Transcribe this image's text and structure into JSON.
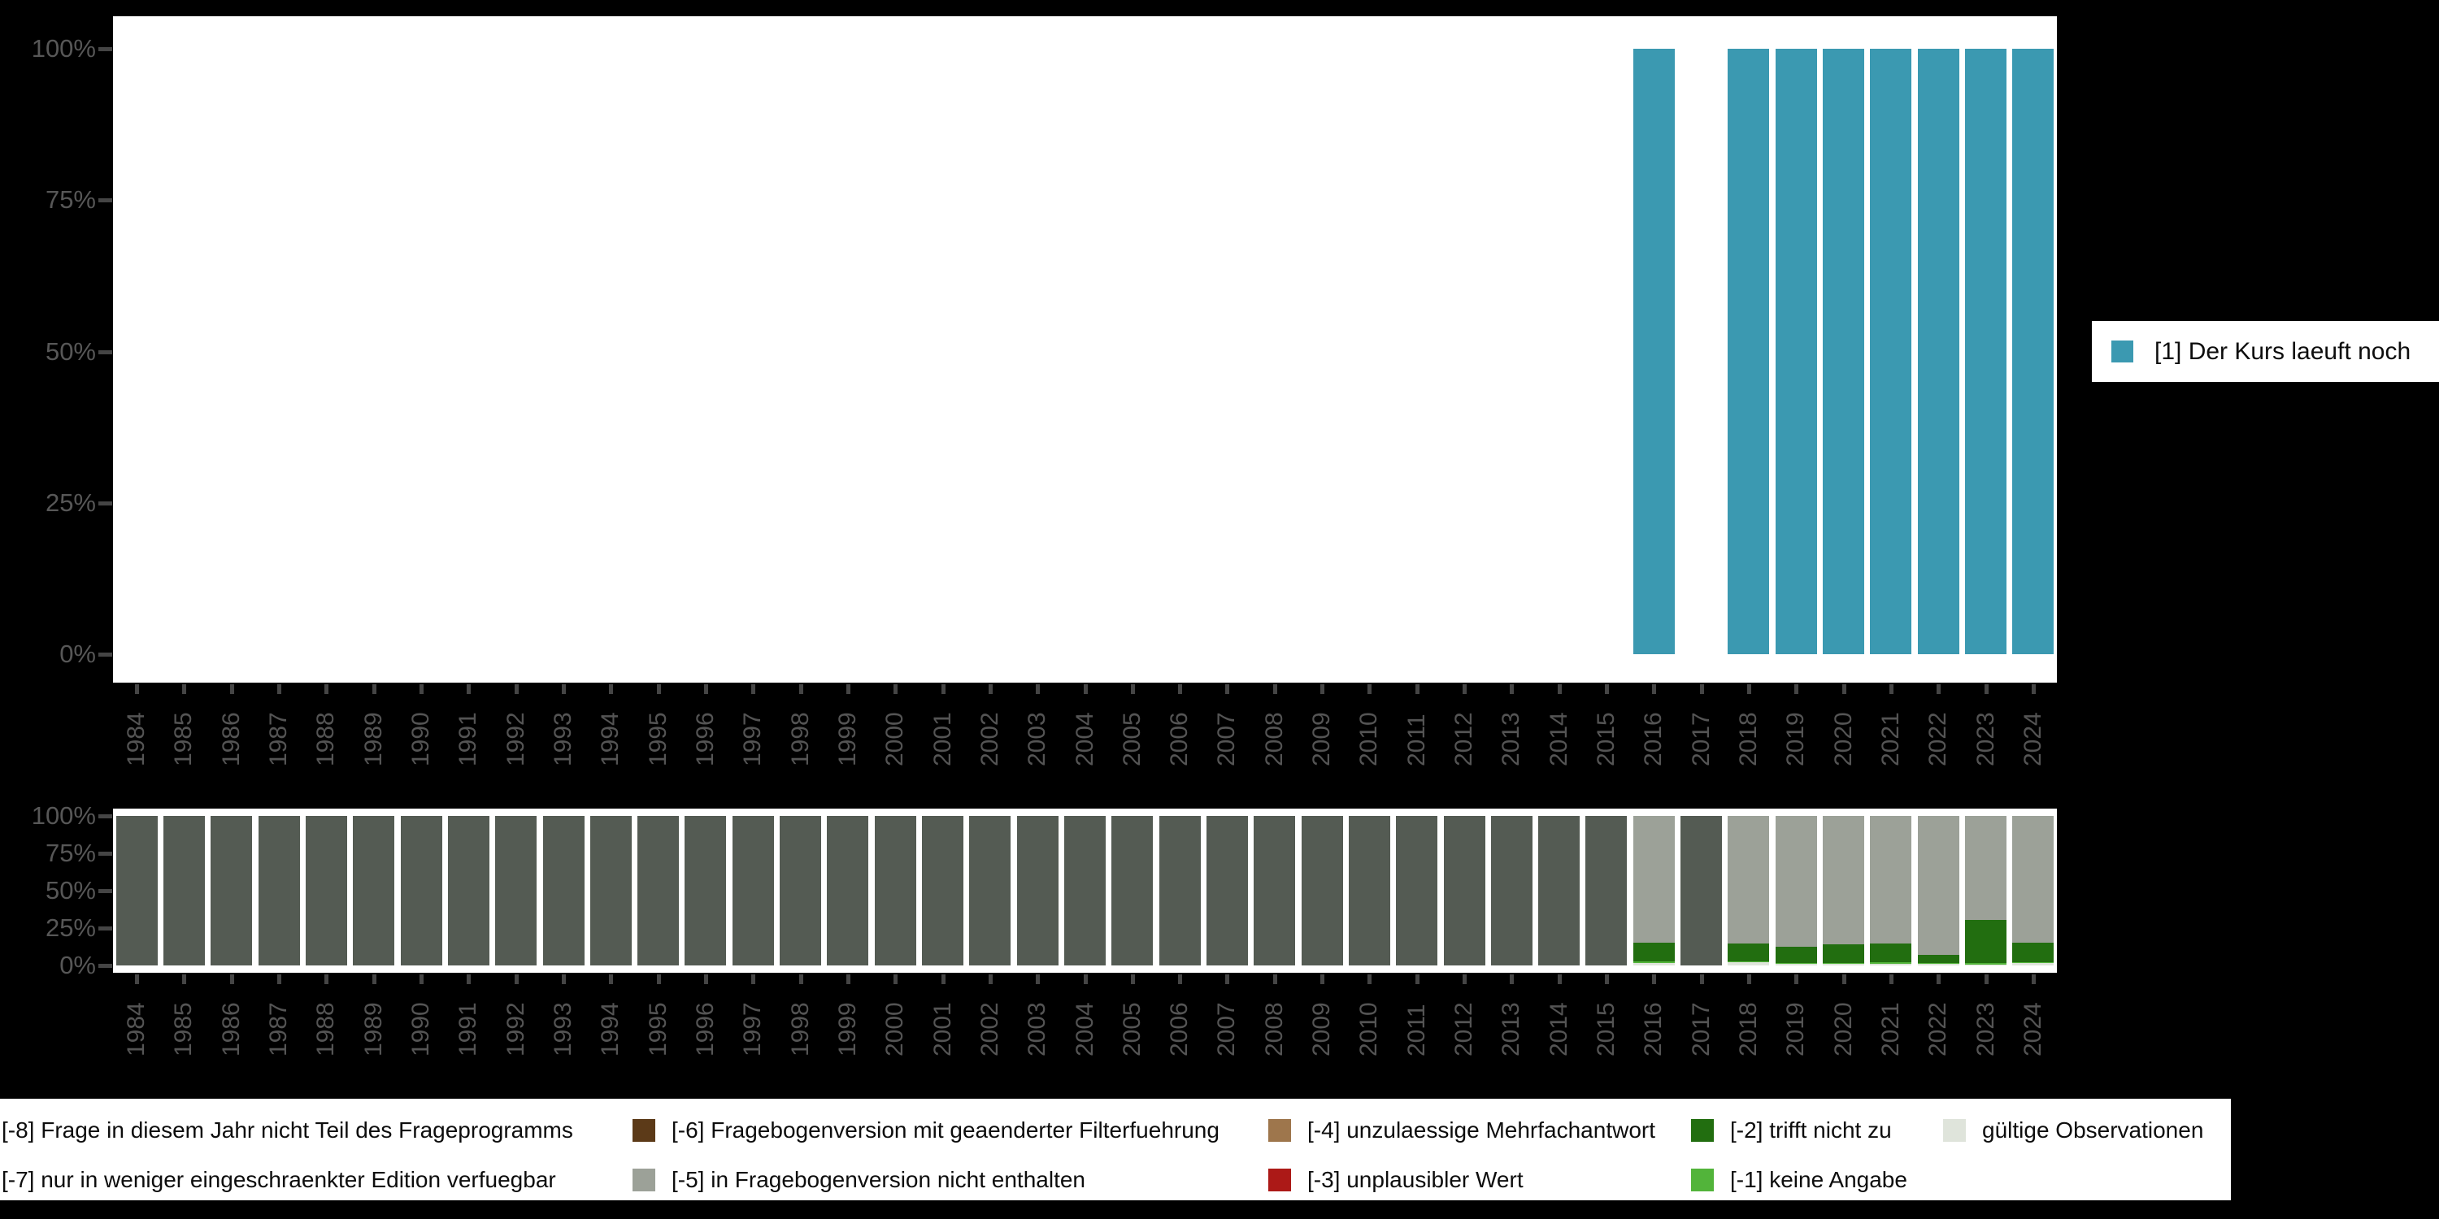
{
  "colors": {
    "background": "#000000",
    "plot_background": "#ffffff",
    "axis_text": "#545454",
    "tick_mark": "#454545",
    "legend_text": "#0d0d0d",
    "value_1_teal": "#3B99B1",
    "code_m8_darkolive": "#545B53",
    "code_m6_darkbrown": "#5C3A18",
    "code_m5_gray": "#9CA198",
    "code_m4_tan": "#9E764C",
    "code_m3_red": "#AC1917",
    "code_m2_darkgreen": "#226E10",
    "code_m1_lightgreen": "#52B43A",
    "valid_palegray": "#DFE4DB"
  },
  "legend_top": {
    "label": "[1] Der Kurs laeuft noch",
    "swatch_color": "#3B99B1"
  },
  "legend_bottom": {
    "rows": [
      [
        {
          "label": "[-8] Frage in diesem Jahr nicht Teil des Frageprogramms",
          "square_visible": false,
          "color": null
        },
        {
          "label": "[-6] Fragebogenversion mit geaenderter Filterfuehrung",
          "square_visible": true,
          "color": "#5C3A18"
        },
        {
          "label": "[-4] unzulaessige Mehrfachantwort",
          "square_visible": true,
          "color": "#9E764C"
        },
        {
          "label": "[-2] trifft nicht zu",
          "square_visible": true,
          "color": "#226E10"
        },
        {
          "label": "gültige Observationen",
          "square_visible": true,
          "color": "#DFE4DB"
        }
      ],
      [
        {
          "label": "[-7] nur in weniger eingeschraenkter Edition verfuegbar",
          "square_visible": false,
          "color": null
        },
        {
          "label": "[-5] in Fragebogenversion nicht enthalten",
          "square_visible": true,
          "color": "#9CA198"
        },
        {
          "label": "[-3] unplausibler Wert",
          "square_visible": true,
          "color": "#AC1917"
        },
        {
          "label": "[-1] keine Angabe",
          "square_visible": true,
          "color": "#52B43A"
        }
      ]
    ]
  },
  "chart_data": [
    {
      "type": "bar",
      "title": "",
      "categories": [
        "1984",
        "1985",
        "1986",
        "1987",
        "1988",
        "1989",
        "1990",
        "1991",
        "1992",
        "1993",
        "1994",
        "1995",
        "1996",
        "1997",
        "1998",
        "1999",
        "2000",
        "2001",
        "2002",
        "2003",
        "2004",
        "2005",
        "2006",
        "2007",
        "2008",
        "2009",
        "2010",
        "2011",
        "2012",
        "2013",
        "2014",
        "2015",
        "2016",
        "2017",
        "2018",
        "2019",
        "2020",
        "2021",
        "2022",
        "2023",
        "2024"
      ],
      "ylim": [
        0,
        100
      ],
      "ytick_values": [
        0,
        25,
        50,
        75,
        100
      ],
      "ytick_labels": [
        "0%",
        "25%",
        "50%",
        "75%",
        "100%"
      ],
      "grid": false,
      "legend_position": "right",
      "series": [
        {
          "name": "[1] Der Kurs laeuft noch",
          "color": "#3B99B1",
          "values": [
            null,
            null,
            null,
            null,
            null,
            null,
            null,
            null,
            null,
            null,
            null,
            null,
            null,
            null,
            null,
            null,
            null,
            null,
            null,
            null,
            null,
            null,
            null,
            null,
            null,
            null,
            null,
            null,
            null,
            null,
            null,
            null,
            100,
            null,
            100,
            100,
            100,
            100,
            100,
            100,
            100
          ]
        }
      ]
    },
    {
      "type": "stacked_bar",
      "title": "",
      "categories": [
        "1984",
        "1985",
        "1986",
        "1987",
        "1988",
        "1989",
        "1990",
        "1991",
        "1992",
        "1993",
        "1994",
        "1995",
        "1996",
        "1997",
        "1998",
        "1999",
        "2000",
        "2001",
        "2002",
        "2003",
        "2004",
        "2005",
        "2006",
        "2007",
        "2008",
        "2009",
        "2010",
        "2011",
        "2012",
        "2013",
        "2014",
        "2015",
        "2016",
        "2017",
        "2018",
        "2019",
        "2020",
        "2021",
        "2022",
        "2023",
        "2024"
      ],
      "ylim": [
        0,
        100
      ],
      "ytick_values": [
        0,
        25,
        50,
        75,
        100
      ],
      "ytick_labels": [
        "0%",
        "25%",
        "50%",
        "75%",
        "100%"
      ],
      "grid": false,
      "legend_position": "bottom",
      "series": [
        {
          "name": "gültige Observationen",
          "color": "#DFE4DB",
          "values": [
            0,
            0,
            0,
            0,
            0,
            0,
            0,
            0,
            0,
            0,
            0,
            0,
            0,
            0,
            0,
            0,
            0,
            0,
            0,
            0,
            0,
            0,
            0,
            0,
            0,
            0,
            0,
            0,
            0,
            0,
            0,
            0,
            1.5,
            0,
            2,
            1,
            1,
            1,
            1,
            0.5,
            1.5
          ]
        },
        {
          "name": "[-1] keine Angabe",
          "color": "#52B43A",
          "values": [
            0,
            0,
            0,
            0,
            0,
            0,
            0,
            0,
            0,
            0,
            0,
            0,
            0,
            0,
            0,
            0,
            0,
            0,
            0,
            0,
            0,
            0,
            0,
            0,
            0,
            0,
            0,
            0,
            0,
            0,
            0,
            0,
            1,
            0,
            0.5,
            0.5,
            0.5,
            1,
            0.5,
            1,
            0.5
          ]
        },
        {
          "name": "[-2] trifft nicht zu",
          "color": "#226E10",
          "values": [
            0,
            0,
            0,
            0,
            0,
            0,
            0,
            0,
            0,
            0,
            0,
            0,
            0,
            0,
            0,
            0,
            0,
            0,
            0,
            0,
            0,
            0,
            0,
            0,
            0,
            0,
            0,
            0,
            0,
            0,
            0,
            0,
            12.5,
            0,
            12,
            11,
            12.5,
            12.5,
            5.5,
            29,
            13
          ]
        },
        {
          "name": "[-5] in Fragebogenversion nicht enthalten",
          "color": "#9CA198",
          "values": [
            0,
            0,
            0,
            0,
            0,
            0,
            0,
            0,
            0,
            0,
            0,
            0,
            0,
            0,
            0,
            0,
            0,
            0,
            0,
            0,
            0,
            0,
            0,
            0,
            0,
            0,
            0,
            0,
            0,
            0,
            0,
            0,
            85,
            0,
            85.5,
            87.5,
            86,
            85.5,
            93,
            69.5,
            85
          ]
        },
        {
          "name": "[-8] Frage in diesem Jahr nicht Teil des Frageprogramms",
          "color": "#545B53",
          "values": [
            100,
            100,
            100,
            100,
            100,
            100,
            100,
            100,
            100,
            100,
            100,
            100,
            100,
            100,
            100,
            100,
            100,
            100,
            100,
            100,
            100,
            100,
            100,
            100,
            100,
            100,
            100,
            100,
            100,
            100,
            100,
            100,
            0,
            100,
            0,
            0,
            0,
            0,
            0,
            0,
            0
          ]
        }
      ]
    }
  ]
}
